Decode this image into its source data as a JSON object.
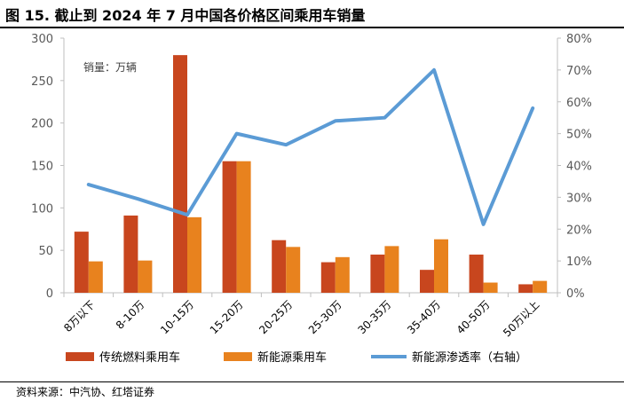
{
  "header": {
    "title": "图 15. 截止到 2024 年 7 月中国各价格区间乘用车销量"
  },
  "footer": {
    "source": "资料来源：中汽协、红塔证券"
  },
  "chart_data": {
    "type": "bar",
    "unit_label": "销量：万辆",
    "categories": [
      "8万以下",
      "8-10万",
      "10-15万",
      "15-20万",
      "20-25万",
      "25-30万",
      "30-35万",
      "35-40万",
      "40-50万",
      "50万以上"
    ],
    "series": [
      {
        "name": "传统燃料乘用车",
        "type": "bar",
        "axis": "left",
        "color": "#C8461E",
        "values": [
          72,
          91,
          280,
          155,
          62,
          36,
          45,
          27,
          45,
          10
        ]
      },
      {
        "name": "新能源乘用车",
        "type": "bar",
        "axis": "left",
        "color": "#E8821E",
        "values": [
          37,
          38,
          89,
          155,
          54,
          42,
          55,
          63,
          12,
          14
        ]
      },
      {
        "name": "新能源渗透率（右轴）",
        "type": "line",
        "axis": "right",
        "color": "#5B9BD5",
        "values": [
          0.34,
          0.295,
          0.245,
          0.5,
          0.465,
          0.54,
          0.55,
          0.7,
          0.215,
          0.58
        ]
      }
    ],
    "y_left": {
      "min": 0,
      "max": 300,
      "ticks": [
        0,
        50,
        100,
        150,
        200,
        250,
        300
      ]
    },
    "y_right": {
      "min": 0,
      "max": 0.8,
      "ticks": [
        0,
        0.1,
        0.2,
        0.3,
        0.4,
        0.5,
        0.6,
        0.7,
        0.8
      ],
      "tick_labels": [
        "0%",
        "10%",
        "20%",
        "30%",
        "40%",
        "50%",
        "60%",
        "70%",
        "80%"
      ]
    },
    "grid": false,
    "legend_position": "bottom"
  }
}
